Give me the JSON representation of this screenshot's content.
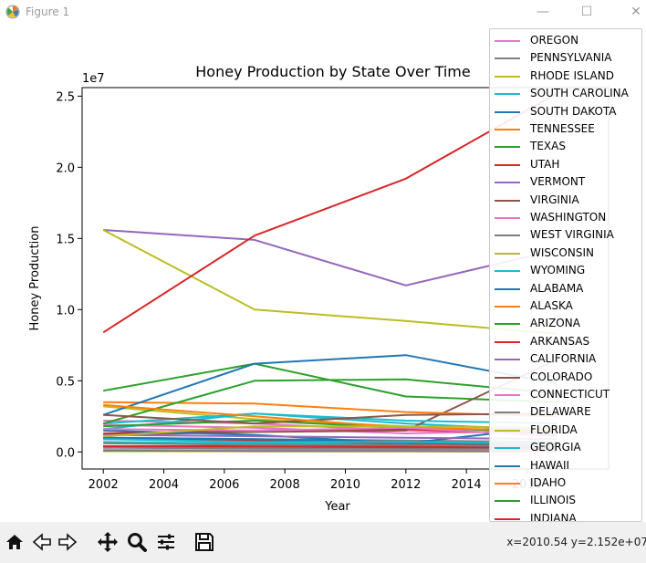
{
  "window": {
    "title": "Figure 1",
    "minimize": "—",
    "maximize": "☐",
    "close": "✕"
  },
  "toolbar": {
    "home": "home-icon",
    "back": "back-arrow-icon",
    "forward": "forward-arrow-icon",
    "pan": "pan-icon",
    "zoom": "zoom-icon",
    "configure": "configure-subplots-icon",
    "save": "save-icon",
    "coords": "x=2010.54 y=2.152e+07"
  },
  "chart_data": {
    "type": "line",
    "title": "Honey Production by State Over Time",
    "xlabel": "Year",
    "ylabel": "Honey Production",
    "offset_label": "1e7",
    "xlim": [
      2001.3,
      2018.7
    ],
    "ylim": [
      -1200000,
      25600000
    ],
    "xticks": [
      2002,
      2004,
      2006,
      2008,
      2010,
      2012,
      2014,
      2016
    ],
    "yticks": [
      0,
      5000000,
      10000000,
      15000000,
      20000000,
      25000000
    ],
    "ytick_labels": [
      "0.0",
      "0.5",
      "1.0",
      "1.5",
      "2.0",
      "2.5"
    ],
    "x": [
      2002,
      2007,
      2012,
      2017
    ],
    "series": [
      {
        "name": "OREGON",
        "color": "#e377c2",
        "values": [
          1900000,
          1700000,
          1300000,
          1500000
        ]
      },
      {
        "name": "PENNSYLVANIA",
        "color": "#7f7f7f",
        "values": [
          1000000,
          900000,
          800000,
          700000
        ]
      },
      {
        "name": "RHODE ISLAND",
        "color": "#bcbd22",
        "values": [
          50000,
          40000,
          30000,
          20000
        ]
      },
      {
        "name": "SOUTH CAROLINA",
        "color": "#17becf",
        "values": [
          700000,
          600000,
          550000,
          500000
        ]
      },
      {
        "name": "SOUTH DAKOTA",
        "color": "#1f77b4",
        "values": [
          null,
          null,
          null,
          null
        ]
      },
      {
        "name": "TENNESSEE",
        "color": "#ff7f0e",
        "values": [
          900000,
          800000,
          700000,
          600000
        ]
      },
      {
        "name": "TEXAS",
        "color": "#2ca02c",
        "values": [
          4300000,
          6200000,
          3900000,
          3500000
        ]
      },
      {
        "name": "UTAH",
        "color": "#d62728",
        "values": [
          1000000,
          800000,
          600000,
          500000
        ]
      },
      {
        "name": "VERMONT",
        "color": "#9467bd",
        "values": [
          300000,
          250000,
          250000,
          200000
        ]
      },
      {
        "name": "VIRGINIA",
        "color": "#8c564b",
        "values": [
          400000,
          350000,
          300000,
          300000
        ]
      },
      {
        "name": "WASHINGTON",
        "color": "#e377c2",
        "values": [
          2200000,
          2000000,
          1500000,
          1300000
        ]
      },
      {
        "name": "WEST VIRGINIA",
        "color": "#7f7f7f",
        "values": [
          300000,
          250000,
          200000,
          200000
        ]
      },
      {
        "name": "WISCONSIN",
        "color": "#bcbd22",
        "values": [
          3200000,
          2300000,
          1800000,
          1700000
        ]
      },
      {
        "name": "WYOMING",
        "color": "#17becf",
        "values": [
          1600000,
          2700000,
          2000000,
          1500000
        ]
      },
      {
        "name": "ALABAMA",
        "color": "#1f77b4",
        "values": [
          1000000,
          900000,
          700000,
          500000
        ]
      },
      {
        "name": "ALASKA",
        "color": "#ff7f0e",
        "values": [
          null,
          null,
          null,
          null
        ]
      },
      {
        "name": "ARIZONA",
        "color": "#2ca02c",
        "values": [
          1800000,
          2200000,
          1700000,
          1400000
        ]
      },
      {
        "name": "ARKANSAS",
        "color": "#d62728",
        "values": [
          1300000,
          1500000,
          1600000,
          1200000
        ]
      },
      {
        "name": "CALIFORNIA",
        "color": "#9467bd",
        "values": [
          15600000,
          14900000,
          11700000,
          14200000
        ]
      },
      {
        "name": "COLORADO",
        "color": "#8c564b",
        "values": [
          1200000,
          1400000,
          1500000,
          6500000
        ]
      },
      {
        "name": "CONNECTICUT",
        "color": "#e377c2",
        "values": [
          150000,
          120000,
          100000,
          100000
        ]
      },
      {
        "name": "DELAWARE",
        "color": "#7f7f7f",
        "values": [
          80000,
          70000,
          60000,
          50000
        ]
      },
      {
        "name": "FLORIDA",
        "color": "#bcbd22",
        "values": [
          15600000,
          10000000,
          9200000,
          8300000
        ]
      },
      {
        "name": "GEORGIA",
        "color": "#17becf",
        "values": [
          2000000,
          2700000,
          2200000,
          2000000
        ]
      },
      {
        "name": "HAWAII",
        "color": "#1f77b4",
        "values": [
          1500000,
          1200000,
          600000,
          1800000
        ]
      },
      {
        "name": "IDAHO",
        "color": "#ff7f0e",
        "values": [
          3500000,
          3400000,
          2800000,
          2500000
        ]
      },
      {
        "name": "ILLINOIS",
        "color": "#2ca02c",
        "values": [
          400000,
          350000,
          400000,
          300000
        ]
      },
      {
        "name": "INDIANA",
        "color": "#d62728",
        "values": [
          400000,
          400000,
          350000,
          300000
        ]
      },
      {
        "name": "",
        "color": "#1f77b4",
        "values": [
          2600000,
          6200000,
          6800000,
          4800000
        ]
      },
      {
        "name": "",
        "color": "#2ca02c",
        "values": [
          2000000,
          5000000,
          5100000,
          4100000
        ]
      },
      {
        "name": "",
        "color": "#d62728",
        "values": [
          8400000,
          15200000,
          19200000,
          25200000
        ]
      },
      {
        "name": "",
        "color": "#8c564b",
        "values": [
          2600000,
          2000000,
          2600000,
          2700000
        ]
      },
      {
        "name": "",
        "color": "#ff7f0e",
        "values": [
          3300000,
          2500000,
          1700000,
          1500000
        ]
      },
      {
        "name": "",
        "color": "#9467bd",
        "values": [
          1200000,
          1100000,
          1000000,
          900000
        ]
      },
      {
        "name": "",
        "color": "#e377c2",
        "values": [
          1600000,
          1500000,
          1700000,
          1100000
        ]
      },
      {
        "name": "",
        "color": "#7f7f7f",
        "values": [
          600000,
          500000,
          500000,
          400000
        ]
      },
      {
        "name": "",
        "color": "#bcbd22",
        "values": [
          1100000,
          1800000,
          1800000,
          1700000
        ]
      },
      {
        "name": "",
        "color": "#17becf",
        "values": [
          900000,
          700000,
          700000,
          600000
        ]
      }
    ],
    "legend": {
      "placement": "right",
      "entries": [
        {
          "name": "OREGON",
          "color": "#e377c2"
        },
        {
          "name": "PENNSYLVANIA",
          "color": "#7f7f7f"
        },
        {
          "name": "RHODE ISLAND",
          "color": "#bcbd22"
        },
        {
          "name": "SOUTH CAROLINA",
          "color": "#17becf"
        },
        {
          "name": "SOUTH DAKOTA",
          "color": "#1f77b4"
        },
        {
          "name": "TENNESSEE",
          "color": "#ff7f0e"
        },
        {
          "name": "TEXAS",
          "color": "#2ca02c"
        },
        {
          "name": "UTAH",
          "color": "#d62728"
        },
        {
          "name": "VERMONT",
          "color": "#9467bd"
        },
        {
          "name": "VIRGINIA",
          "color": "#8c564b"
        },
        {
          "name": "WASHINGTON",
          "color": "#e377c2"
        },
        {
          "name": "WEST VIRGINIA",
          "color": "#7f7f7f"
        },
        {
          "name": "WISCONSIN",
          "color": "#bcbd22"
        },
        {
          "name": "WYOMING",
          "color": "#17becf"
        },
        {
          "name": "ALABAMA",
          "color": "#1f77b4"
        },
        {
          "name": "ALASKA",
          "color": "#ff7f0e"
        },
        {
          "name": "ARIZONA",
          "color": "#2ca02c"
        },
        {
          "name": "ARKANSAS",
          "color": "#d62728"
        },
        {
          "name": "CALIFORNIA",
          "color": "#9467bd"
        },
        {
          "name": "COLORADO",
          "color": "#8c564b"
        },
        {
          "name": "CONNECTICUT",
          "color": "#e377c2"
        },
        {
          "name": "DELAWARE",
          "color": "#7f7f7f"
        },
        {
          "name": "FLORIDA",
          "color": "#bcbd22"
        },
        {
          "name": "GEORGIA",
          "color": "#17becf"
        },
        {
          "name": "HAWAII",
          "color": "#1f77b4"
        },
        {
          "name": "IDAHO",
          "color": "#ff7f0e"
        },
        {
          "name": "ILLINOIS",
          "color": "#2ca02c"
        },
        {
          "name": "INDIANA",
          "color": "#d62728"
        }
      ]
    }
  }
}
